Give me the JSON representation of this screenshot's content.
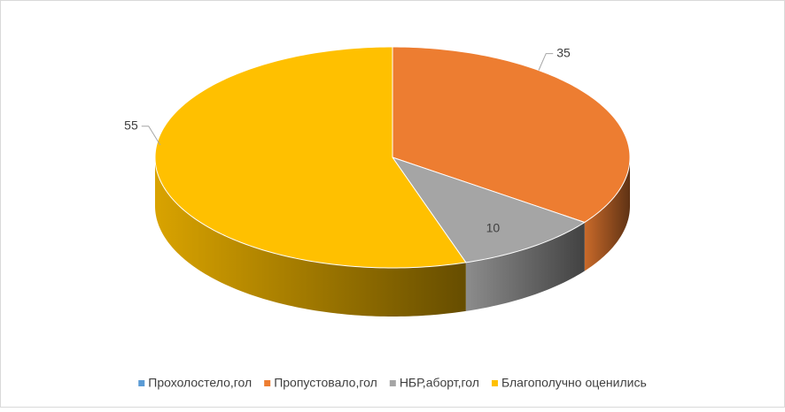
{
  "chart_data": {
    "type": "pie3d",
    "categories": [
      "Прохолостело,гол",
      "Пропустовало,гол",
      "НБР,аборт,гол",
      "Благополучно оценились"
    ],
    "values": [
      0,
      35,
      10,
      55
    ],
    "colors": [
      "#5b9bd5",
      "#ed7d31",
      "#a5a5a5",
      "#ffc000"
    ],
    "legend": "bottom"
  }
}
